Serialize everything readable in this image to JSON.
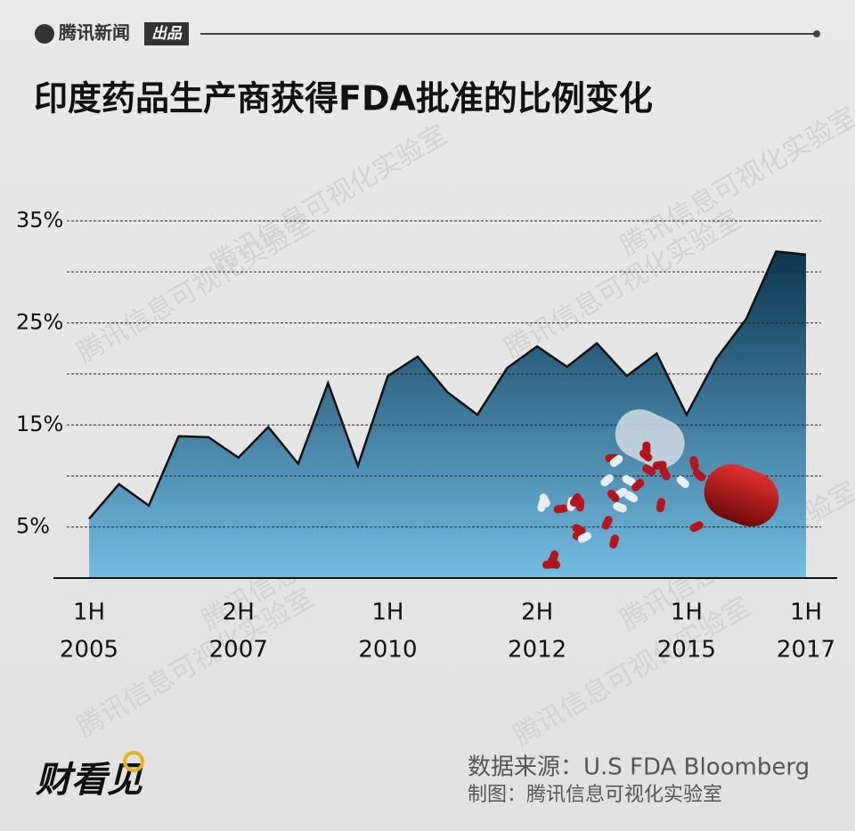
{
  "header": {
    "brand": "腾讯新闻",
    "badge": "出品"
  },
  "chart_data": {
    "type": "area",
    "title": "印度药品生产商获得FDA批准的比例变化",
    "categories": [
      [
        "1H",
        "2005"
      ],
      null,
      null,
      null,
      null,
      [
        "2H",
        "2007"
      ],
      null,
      null,
      null,
      null,
      [
        "1H",
        "2010"
      ],
      null,
      null,
      null,
      null,
      [
        "2H",
        "2012"
      ],
      null,
      null,
      null,
      null,
      [
        "1H",
        "2015"
      ],
      null,
      null,
      null,
      [
        "1H",
        "2017"
      ]
    ],
    "values": [
      5.8,
      9.2,
      7.1,
      13.9,
      13.8,
      11.8,
      14.8,
      11.2,
      19.1,
      11.0,
      19.8,
      21.7,
      18.2,
      16.0,
      20.6,
      22.7,
      20.7,
      23.0,
      19.8,
      22.0,
      16.0,
      21.5,
      25.4,
      32.0,
      31.7
    ],
    "ylim": [
      0,
      35
    ],
    "yticks": [
      {
        "value": 5,
        "label": "5%"
      },
      {
        "value": 15,
        "label": "15%"
      },
      {
        "value": 25,
        "label": "25%"
      },
      {
        "value": 35,
        "label": "35%"
      }
    ],
    "minor_yticks": [
      10,
      20,
      30
    ],
    "grid": true,
    "color_top": "#0c3550",
    "color_bottom": "#74bde3"
  },
  "footer": {
    "source": "数据来源：U.S FDA Bloomberg",
    "credit": "制图：腾讯信息可视化实验室",
    "logo": "财看见"
  },
  "watermark": "腾讯信息可视化实验室"
}
